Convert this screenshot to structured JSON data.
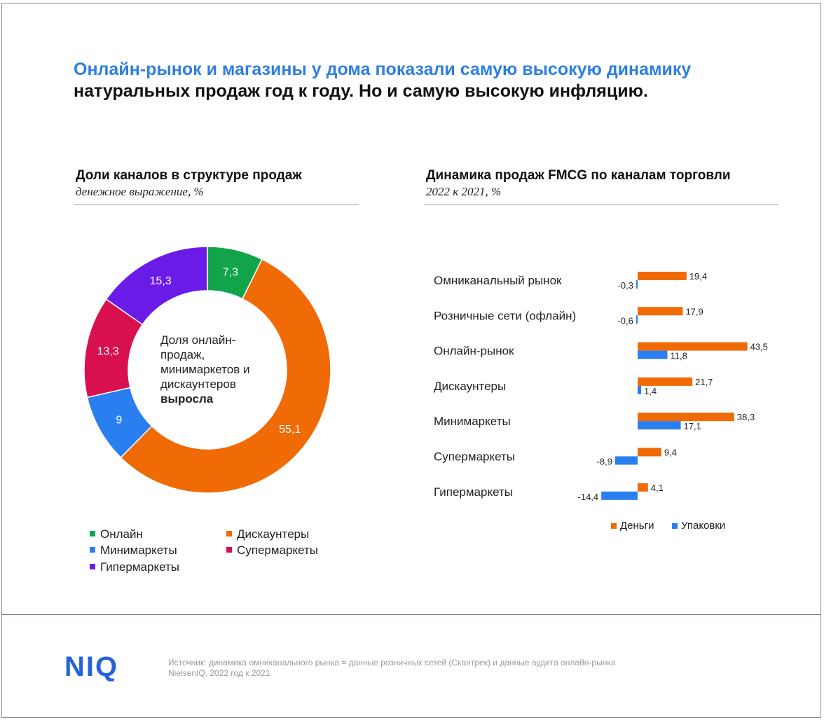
{
  "title": {
    "line1": "Онлайн-рынок и магазины у дома показали самую высокую динамику",
    "line2": "натуральных продаж год к году. Но и самую высокую инфляцию."
  },
  "left_section": {
    "title": "Доли каналов в структуре продаж",
    "subtitle": "денежное выражение, %",
    "center_text": "Доля онлайн-продаж, минимаркетов и дискаунтеров",
    "center_bold": "выросла"
  },
  "right_section": {
    "title": "Динамика продаж FMCG по каналам торговли",
    "subtitle": "2022 к 2021, %"
  },
  "colors": {
    "online": "#11a44a",
    "discounters": "#f06a06",
    "minimarkets": "#2a7ff0",
    "supermarkets": "#d8104f",
    "hypermarkets": "#6a1be8",
    "money": "#f06a06",
    "packs": "#2a7ff0"
  },
  "chart_data": [
    {
      "type": "pie",
      "donut": true,
      "title": "Доли каналов в структуре продаж",
      "subtitle": "денежное выражение, %",
      "slices": [
        {
          "key": "online",
          "label": "Онлайн",
          "value": 7.3,
          "display": "7,3"
        },
        {
          "key": "discounters",
          "label": "Дискаунтеры",
          "value": 55.1,
          "display": "55,1"
        },
        {
          "key": "minimarkets",
          "label": "Минимаркеты",
          "value": 9,
          "display": "9"
        },
        {
          "key": "supermarkets",
          "label": "Супермаркеты",
          "value": 13.3,
          "display": "13,3"
        },
        {
          "key": "hypermarkets",
          "label": "Гипермаркеты",
          "value": 15.3,
          "display": "15,3"
        }
      ],
      "legend": [
        {
          "key": "online",
          "label": "Онлайн"
        },
        {
          "key": "discounters",
          "label": "Дискаунтеры"
        },
        {
          "key": "minimarkets",
          "label": "Минимаркеты"
        },
        {
          "key": "supermarkets",
          "label": "Супермаркеты"
        },
        {
          "key": "hypermarkets",
          "label": "Гипермаркеты"
        }
      ]
    },
    {
      "type": "bar",
      "orientation": "horizontal",
      "title": "Динамика продаж FMCG по каналам торговли",
      "subtitle": "2022 к 2021, %",
      "categories": [
        "Омниканальный рынок",
        "Розничные сети (офлайн)",
        "Онлайн-рынок",
        "Дискаунтеры",
        "Минимаркеты",
        "Супермаркеты",
        "Гипермаркеты"
      ],
      "series": [
        {
          "key": "money",
          "name": "Деньги",
          "values": [
            19.4,
            17.9,
            43.5,
            21.7,
            38.3,
            9.4,
            4.1
          ],
          "labels": [
            "19,4",
            "17,9",
            "43,5",
            "21,7",
            "38,3",
            "9,4",
            "4,1"
          ]
        },
        {
          "key": "packs",
          "name": "Упаковки",
          "values": [
            -0.3,
            -0.6,
            11.8,
            1.4,
            17.1,
            -8.9,
            -14.4
          ],
          "labels": [
            "-0,3",
            "-0,6",
            "11,8",
            "1,4",
            "17,1",
            "-8,9",
            "-14,4"
          ]
        }
      ]
    }
  ],
  "footer": {
    "logo": "NIQ",
    "source_line1": "Источник: динамика омниканального рынка = данные розничных сетей (Скантрек) и данные аудита онлайн-рынка",
    "source_line2": "NielsenIQ, 2022 год к 2021"
  }
}
